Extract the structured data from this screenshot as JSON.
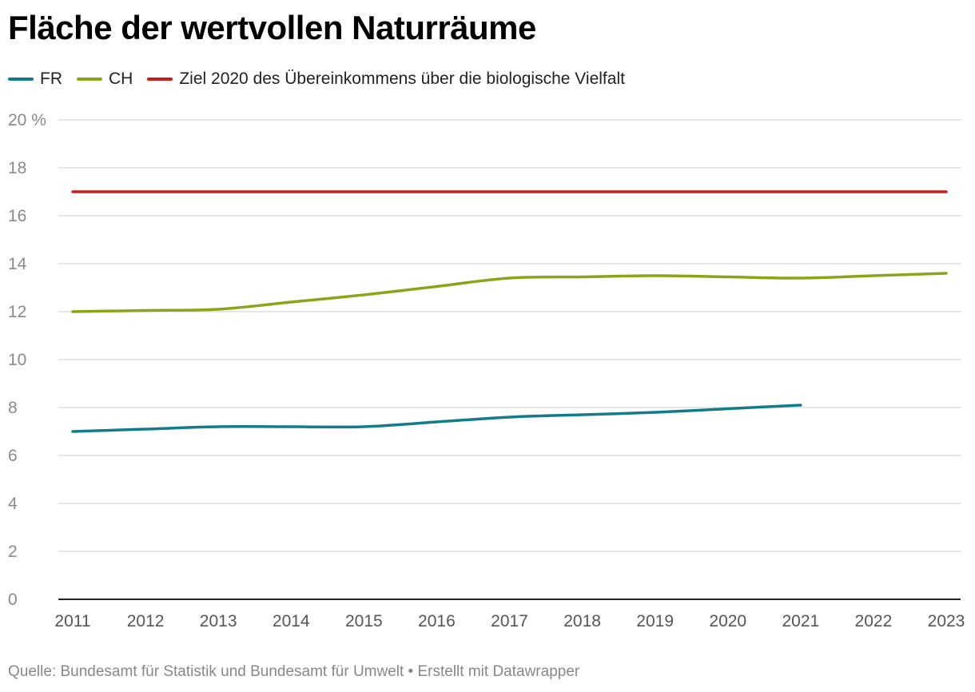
{
  "chart_data": {
    "type": "line",
    "title": "Fläche der wertvollen Naturräume",
    "x": [
      2011,
      2012,
      2013,
      2014,
      2015,
      2016,
      2017,
      2018,
      2019,
      2020,
      2021,
      2022,
      2023
    ],
    "x_tick_labels": [
      "2011",
      "2012",
      "2013",
      "2014",
      "2015",
      "2016",
      "2017",
      "2018",
      "2019",
      "2020",
      "2021",
      "2022",
      "2023"
    ],
    "y_tick_labels": [
      "0",
      "2",
      "4",
      "6",
      "8",
      "10",
      "12",
      "14",
      "16",
      "18",
      "20 %"
    ],
    "y_ticks": [
      0,
      2,
      4,
      6,
      8,
      10,
      12,
      14,
      16,
      18,
      20
    ],
    "ylim": [
      0,
      20
    ],
    "xlim": [
      2011,
      2023
    ],
    "grid": true,
    "legend_position": "top-left",
    "series": [
      {
        "name": "FR",
        "color": "#137c8a",
        "values": [
          7.0,
          7.1,
          7.2,
          7.2,
          7.2,
          7.4,
          7.6,
          7.7,
          7.8,
          7.95,
          8.1,
          null,
          null
        ]
      },
      {
        "name": "CH",
        "color": "#8fa31a",
        "values": [
          12.0,
          12.05,
          12.1,
          12.4,
          12.7,
          13.05,
          13.4,
          13.45,
          13.5,
          13.45,
          13.4,
          13.5,
          13.6
        ]
      },
      {
        "name": "Ziel 2020 des Übereinkommens über die biologische Vielfalt",
        "color": "#c71e1d",
        "values": [
          17,
          17,
          17,
          17,
          17,
          17,
          17,
          17,
          17,
          17,
          17,
          17,
          17
        ]
      }
    ]
  },
  "footer": {
    "text": "Quelle: Bundesamt für Statistik und Bundesamt für Umwelt • Erstellt mit Datawrapper"
  }
}
